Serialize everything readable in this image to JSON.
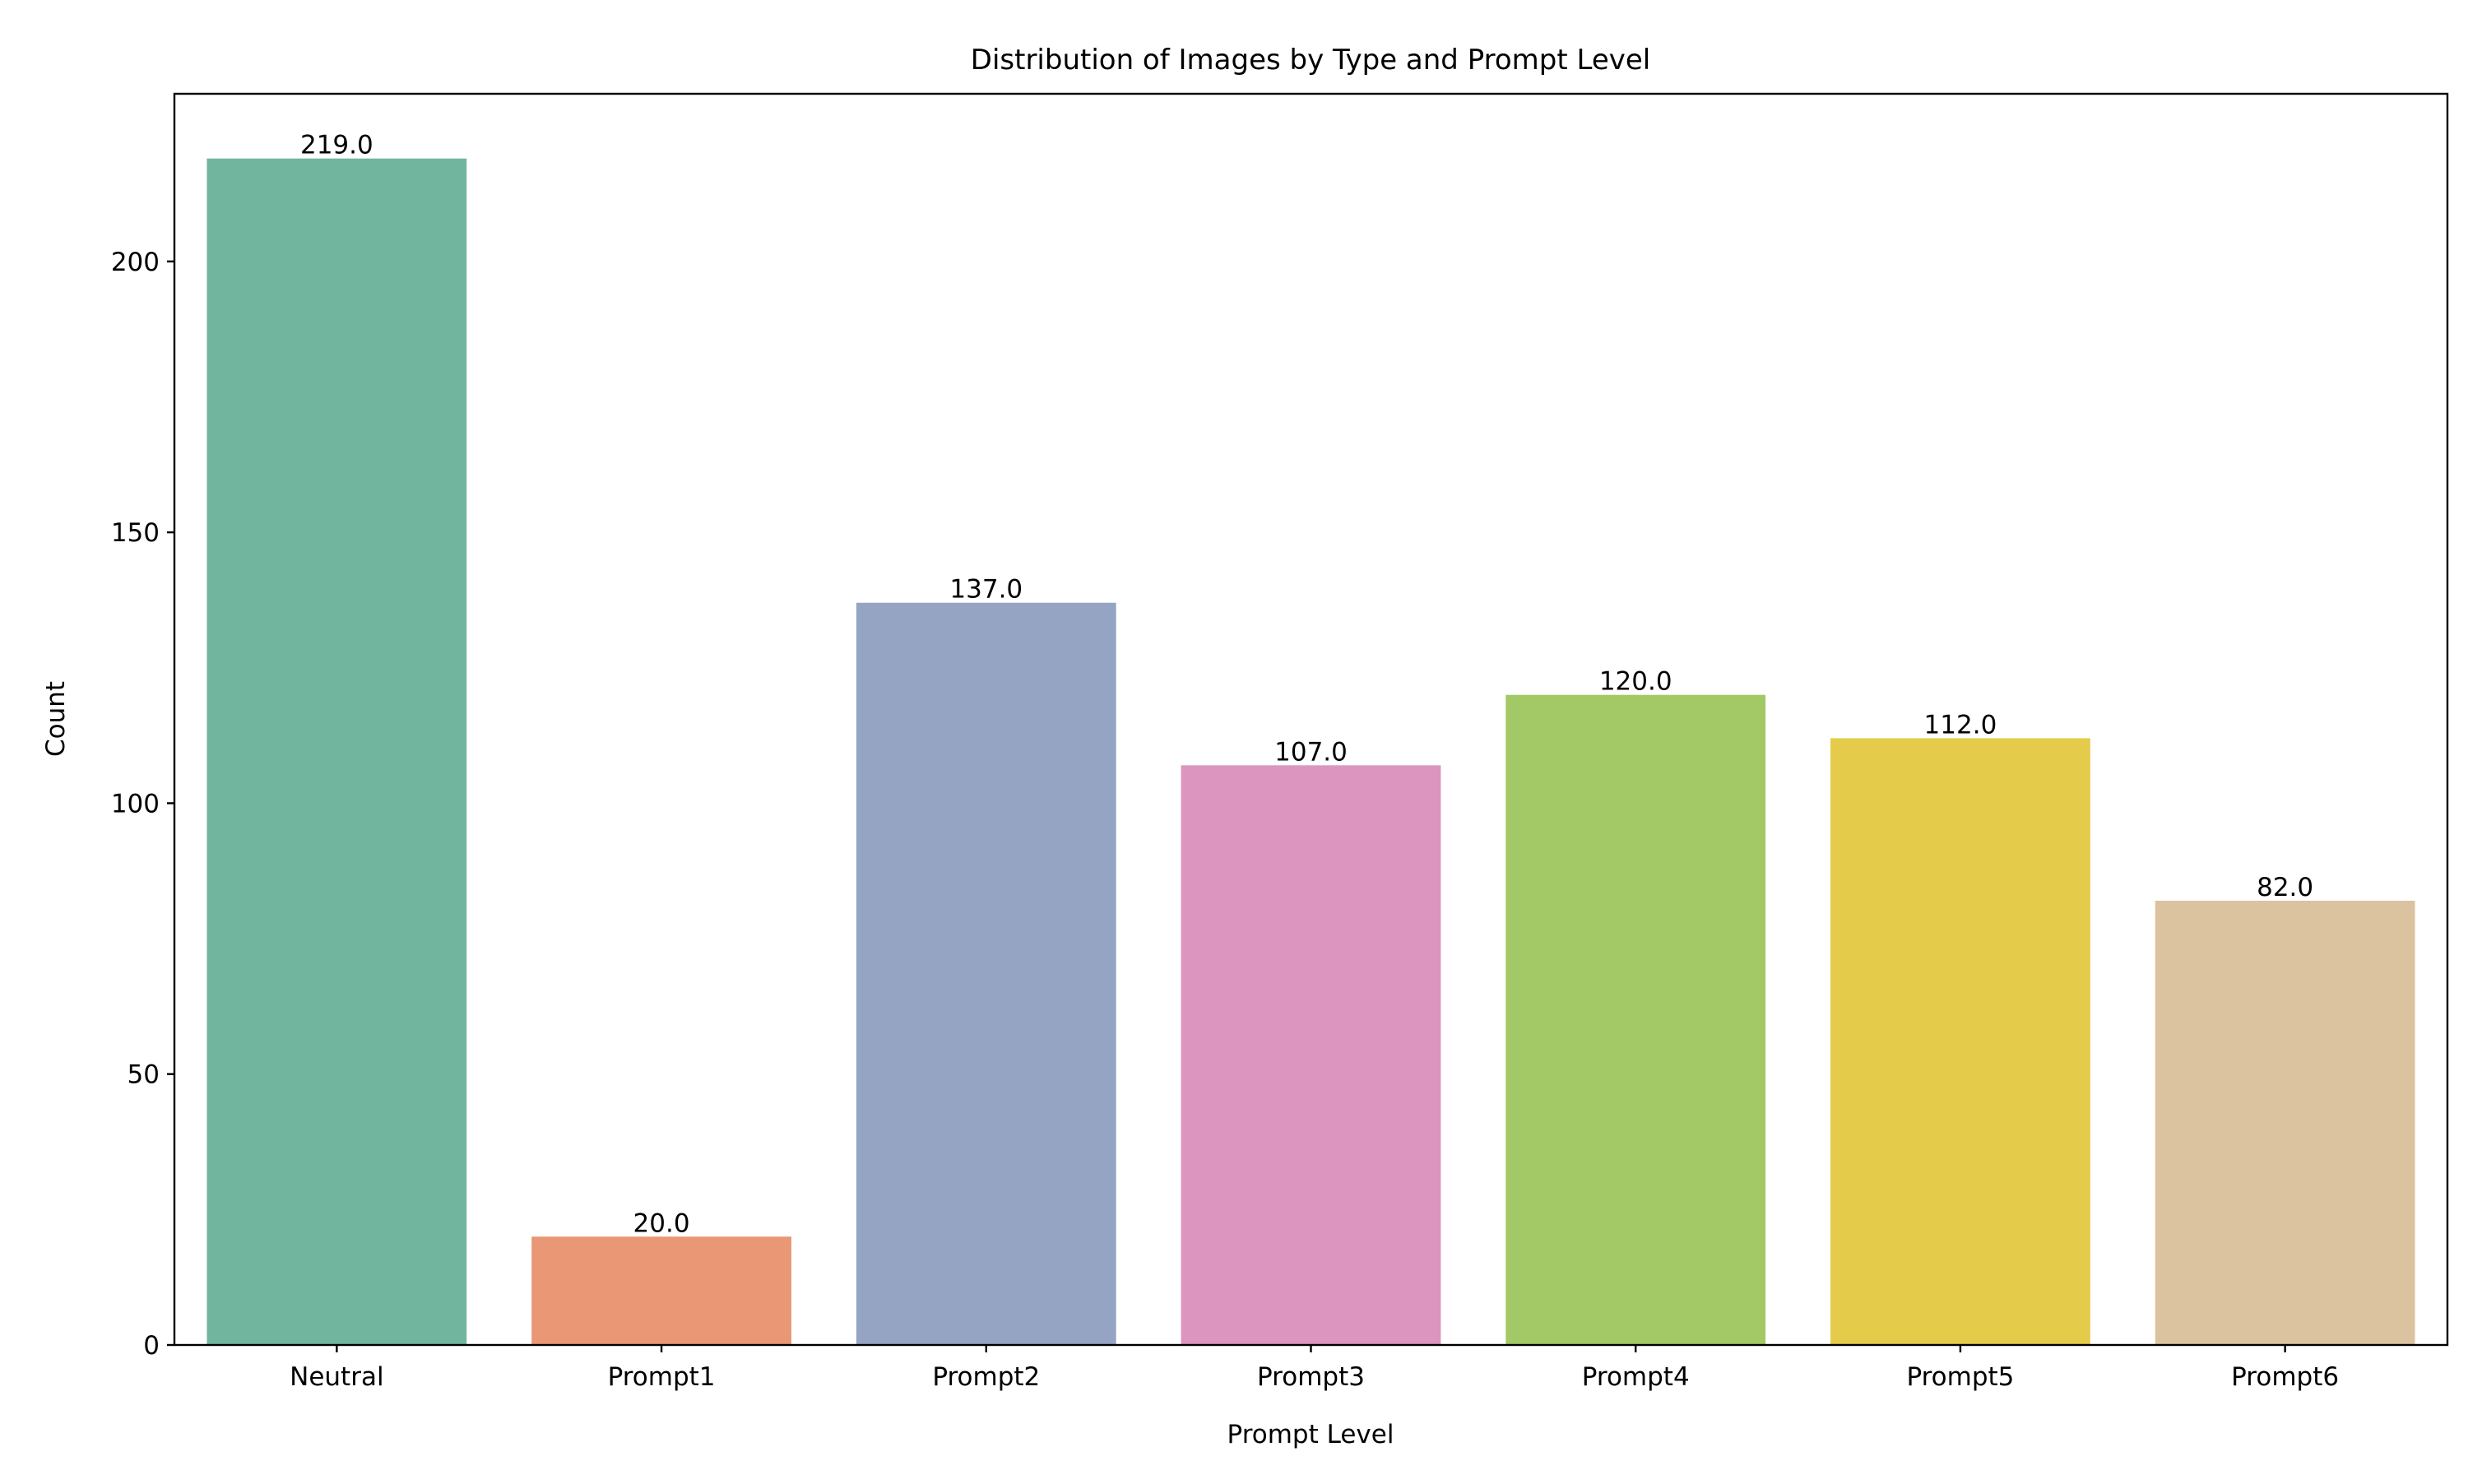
{
  "chart_data": {
    "type": "bar",
    "title": "Distribution of Images by Type and Prompt Level",
    "xlabel": "Prompt Level",
    "ylabel": "Count",
    "categories": [
      "Neutral",
      "Prompt1",
      "Prompt2",
      "Prompt3",
      "Prompt4",
      "Prompt5",
      "Prompt6"
    ],
    "values": [
      219.0,
      20.0,
      137.0,
      107.0,
      120.0,
      112.0,
      82.0
    ],
    "data_labels": [
      "219.0",
      "20.0",
      "137.0",
      "107.0",
      "120.0",
      "112.0",
      "82.0"
    ],
    "colors": [
      "#72b59f",
      "#e99775",
      "#95a4c3",
      "#db95bf",
      "#a2c966",
      "#e4cb4a",
      "#dbc39f"
    ],
    "ylim": [
      0,
      230.95
    ],
    "yticks": [
      0,
      50,
      100,
      150,
      200
    ],
    "grid": false,
    "legend": "none"
  }
}
